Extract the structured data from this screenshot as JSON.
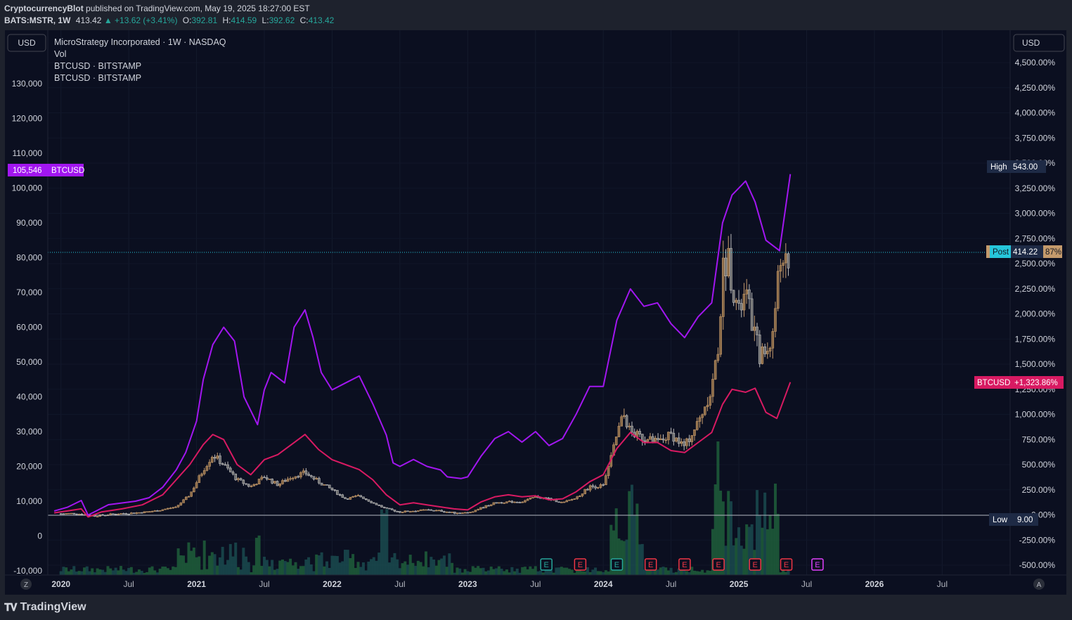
{
  "header": {
    "author": "CryptocurrencyBlot",
    "published": "published on TradingView.com, May 19, 2025 18:27:00 EST",
    "symbol": "BATS:MSTR, 1W",
    "last": "413.42",
    "change": "▲ +13.62 (+3.41%)",
    "o_label": "O:",
    "o": "392.81",
    "h_label": "H:",
    "h": "414.59",
    "l_label": "L:",
    "l": "392.62",
    "c_label": "C:",
    "c": "413.42"
  },
  "legend": {
    "main": "MicroStrategy Incorporated · 1W · NASDAQ",
    "vol": "Vol",
    "btc1": "BTCUSD · BITSTAMP",
    "btc2": "BTCUSD · BITSTAMP"
  },
  "currency_left": "USD",
  "currency_right": "USD",
  "corner_left": "Z",
  "corner_right": "A",
  "footer_brand": "TradingView",
  "colors": {
    "background": "#0b0f20",
    "btc_purple": "#a216f0",
    "btc_pink": "#d81a62",
    "candle_up": "#c49a6c",
    "candle_down": "#bdbdbd",
    "volume": "#1f5e3b",
    "axis_text": "#d1d4dc"
  },
  "chart_data": {
    "type": "line",
    "x_labels": [
      "2020",
      "Jul",
      "2021",
      "Jul",
      "2022",
      "Jul",
      "2023",
      "Jul",
      "2024",
      "Jul",
      "2025",
      "Jul",
      "2026",
      "Jul"
    ],
    "left_axis": {
      "ticks": [
        "130,000",
        "120,000",
        "110,000",
        "100,000",
        "90,000",
        "80,000",
        "70,000",
        "60,000",
        "50,000",
        "40,000",
        "30,000",
        "20,000",
        "10,000",
        "0",
        "-10,000"
      ],
      "range": [
        -10000,
        140000
      ]
    },
    "right_axis": {
      "ticks": [
        "4,500.00%",
        "4,250.00%",
        "4,000.00%",
        "3,750.00%",
        "3,500.00%",
        "3,250.00%",
        "3,000.00%",
        "2,750.00%",
        "2,500.00%",
        "2,250.00%",
        "2,000.00%",
        "1,750.00%",
        "1,500.00%",
        "1,250.00%",
        "1,000.00%",
        "750.00%",
        "500.00%",
        "250.00%",
        "0.00%",
        "-250.00%",
        "-500.00%"
      ],
      "range": [
        -600,
        4700
      ]
    },
    "badges": {
      "btc_left_value": "105,546",
      "btc_left_name": "BTCUSD",
      "high_label": "High",
      "high_value": "543.00",
      "post_label": "Post",
      "post_value": "414.22",
      "post_pct": "87%",
      "btc_right_name": "BTCUSD",
      "btc_right_value": "+1,323.86%",
      "low_label": "Low",
      "low_value": "9.00"
    },
    "earnings_marks": [
      "E",
      "E",
      "E",
      "E",
      "E",
      "E",
      "E",
      "E",
      "E"
    ],
    "series": [
      {
        "name": "BTCUSD · BITSTAMP",
        "axis": "left",
        "x": [
          2019.95,
          2020.05,
          2020.15,
          2020.2,
          2020.25,
          2020.35,
          2020.45,
          2020.55,
          2020.65,
          2020.75,
          2020.85,
          2020.92,
          2021.0,
          2021.05,
          2021.12,
          2021.2,
          2021.28,
          2021.35,
          2021.45,
          2021.5,
          2021.55,
          2021.65,
          2021.72,
          2021.8,
          2021.86,
          2021.92,
          2022.0,
          2022.1,
          2022.2,
          2022.3,
          2022.4,
          2022.45,
          2022.5,
          2022.6,
          2022.7,
          2022.8,
          2022.85,
          2022.95,
          2023.0,
          2023.1,
          2023.2,
          2023.3,
          2023.4,
          2023.5,
          2023.6,
          2023.7,
          2023.8,
          2023.9,
          2024.0,
          2024.1,
          2024.2,
          2024.3,
          2024.4,
          2024.5,
          2024.6,
          2024.7,
          2024.8,
          2024.88,
          2024.95,
          2025.05,
          2025.12,
          2025.2,
          2025.3,
          2025.38
        ],
        "values": [
          7200,
          8300,
          10200,
          6000,
          7000,
          9000,
          9500,
          10000,
          11000,
          14000,
          19000,
          24000,
          33000,
          45000,
          55000,
          60000,
          56000,
          40000,
          32000,
          42000,
          47000,
          44000,
          60000,
          65000,
          57000,
          47000,
          42000,
          44000,
          46000,
          38000,
          29000,
          21000,
          20000,
          22000,
          20000,
          19000,
          17000,
          16500,
          17000,
          23000,
          28000,
          30000,
          27000,
          30000,
          26000,
          28000,
          35000,
          43000,
          43000,
          62000,
          71000,
          66000,
          67000,
          61000,
          57000,
          63000,
          67000,
          90000,
          98000,
          102000,
          96000,
          85000,
          82000,
          104000
        ]
      },
      {
        "name": "BTCUSD · BITSTAMP",
        "axis": "right",
        "x": [
          2019.95,
          2020.05,
          2020.15,
          2020.2,
          2020.3,
          2020.45,
          2020.6,
          2020.75,
          2020.85,
          2020.95,
          2021.05,
          2021.12,
          2021.2,
          2021.3,
          2021.4,
          2021.5,
          2021.6,
          2021.7,
          2021.8,
          2021.9,
          2022.0,
          2022.1,
          2022.2,
          2022.3,
          2022.4,
          2022.5,
          2022.6,
          2022.7,
          2022.8,
          2022.9,
          2023.0,
          2023.1,
          2023.2,
          2023.3,
          2023.4,
          2023.5,
          2023.6,
          2023.7,
          2023.8,
          2023.9,
          2024.0,
          2024.1,
          2024.2,
          2024.3,
          2024.4,
          2024.5,
          2024.6,
          2024.7,
          2024.8,
          2024.88,
          2024.95,
          2025.05,
          2025.12,
          2025.2,
          2025.28,
          2025.38
        ],
        "values": [
          20,
          40,
          60,
          -20,
          30,
          60,
          100,
          200,
          350,
          500,
          700,
          800,
          750,
          500,
          400,
          550,
          600,
          700,
          800,
          650,
          550,
          500,
          450,
          350,
          200,
          100,
          120,
          100,
          80,
          60,
          50,
          130,
          180,
          200,
          180,
          190,
          150,
          160,
          230,
          330,
          400,
          660,
          820,
          720,
          720,
          640,
          620,
          720,
          820,
          1100,
          1250,
          1220,
          1260,
          1020,
          960,
          1320
        ]
      },
      {
        "name": "MSTR",
        "axis": "right",
        "x": [
          2019.95,
          2020.1,
          2020.25,
          2020.4,
          2020.55,
          2020.7,
          2020.85,
          2020.95,
          2021.05,
          2021.12,
          2021.2,
          2021.3,
          2021.4,
          2021.5,
          2021.6,
          2021.7,
          2021.8,
          2021.9,
          2022.0,
          2022.1,
          2022.2,
          2022.3,
          2022.4,
          2022.5,
          2022.6,
          2022.7,
          2022.8,
          2022.9,
          2023.0,
          2023.1,
          2023.2,
          2023.3,
          2023.4,
          2023.5,
          2023.6,
          2023.7,
          2023.8,
          2023.9,
          2024.0,
          2024.05,
          2024.1,
          2024.15,
          2024.2,
          2024.3,
          2024.4,
          2024.5,
          2024.6,
          2024.7,
          2024.8,
          2024.85,
          2024.88,
          2024.92,
          2024.95,
          2025.0,
          2025.05,
          2025.1,
          2025.15,
          2025.2,
          2025.25,
          2025.3,
          2025.35,
          2025.38
        ],
        "values": [
          10,
          15,
          -10,
          10,
          20,
          40,
          80,
          200,
          450,
          600,
          500,
          350,
          280,
          380,
          300,
          380,
          420,
          330,
          250,
          160,
          190,
          120,
          60,
          30,
          40,
          50,
          40,
          20,
          20,
          70,
          120,
          130,
          130,
          180,
          160,
          120,
          170,
          280,
          290,
          520,
          800,
          1000,
          820,
          760,
          720,
          800,
          680,
          920,
          1260,
          1700,
          2400,
          2600,
          2300,
          2000,
          2200,
          1900,
          1600,
          1600,
          1800,
          2500,
          2600,
          2520
        ]
      }
    ]
  }
}
